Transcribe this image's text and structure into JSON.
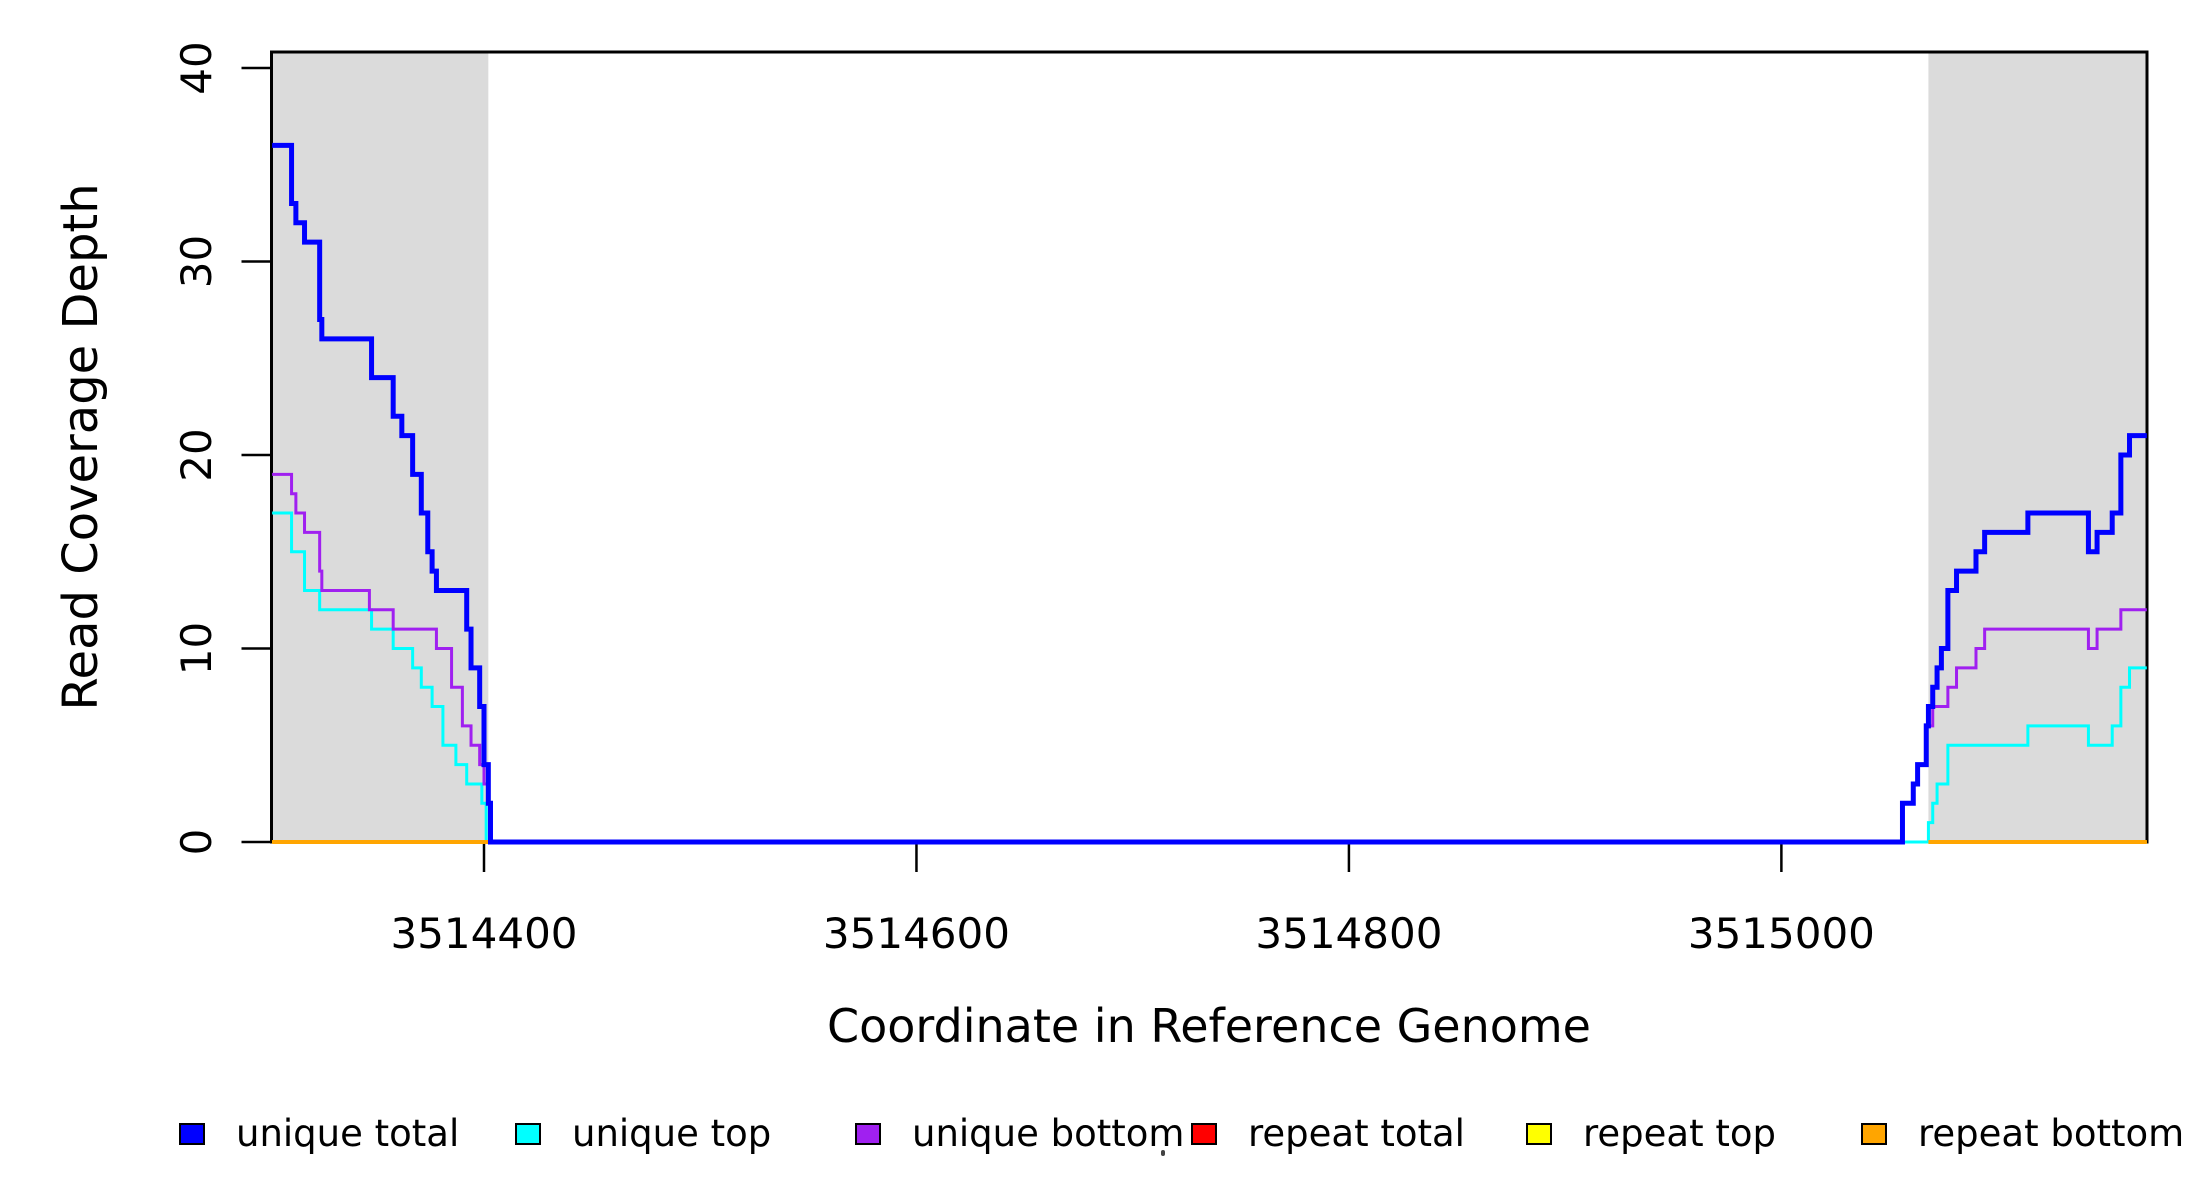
{
  "figure": {
    "background": "#FFFFFF",
    "axis_color": "#000000",
    "shade_color": "#DBDBDB"
  },
  "chart_data": {
    "type": "line",
    "subtype": "step",
    "title": "",
    "xlabel": "Coordinate in Reference Genome",
    "ylabel": "Read Coverage Depth",
    "x_range": [
      3514302,
      3515169
    ],
    "y_range": [
      0,
      40.8
    ],
    "x_ticks": [
      3514400,
      3514600,
      3514800,
      3515000
    ],
    "x_tick_labels": [
      "3514400",
      "3514600",
      "3514800",
      "3515000"
    ],
    "y_ticks": [
      0,
      10,
      20,
      30,
      40
    ],
    "y_tick_labels": [
      "0",
      "10",
      "20",
      "30",
      "40"
    ],
    "grid": false,
    "legend_position": "bottom",
    "shaded_regions": [
      {
        "name": "repeat-region-left",
        "x0": 3514302,
        "x1": 3514402
      },
      {
        "name": "repeat-region-right",
        "x0": 3515068,
        "x1": 3515169
      }
    ],
    "draw_order": [
      "repeat total",
      "repeat top",
      "unique top",
      "unique bottom",
      "repeat bottom",
      "unique total"
    ],
    "series": [
      {
        "name": "unique total",
        "color": "#0000FF",
        "line_width": 5,
        "segments": [
          [
            [
              3514302,
              36
            ],
            [
              3514311,
              33
            ],
            [
              3514313,
              32
            ],
            [
              3514317,
              31
            ],
            [
              3514324,
              27
            ],
            [
              3514325,
              26
            ],
            [
              3514348,
              24
            ],
            [
              3514358,
              22
            ],
            [
              3514362,
              21
            ],
            [
              3514367,
              19
            ],
            [
              3514371,
              17
            ],
            [
              3514374,
              15
            ],
            [
              3514376,
              14
            ],
            [
              3514378,
              13
            ],
            [
              3514392,
              11
            ],
            [
              3514394,
              9
            ],
            [
              3514398,
              7
            ],
            [
              3514400,
              4
            ],
            [
              3514402,
              2
            ],
            [
              3514403,
              0
            ],
            [
              3515056,
              2
            ],
            [
              3515061,
              3
            ],
            [
              3515063,
              4
            ],
            [
              3515067,
              6
            ],
            [
              3515068,
              7
            ],
            [
              3515070,
              8
            ],
            [
              3515072,
              9
            ],
            [
              3515074,
              10
            ],
            [
              3515077,
              13
            ],
            [
              3515081,
              14
            ],
            [
              3515090,
              15
            ],
            [
              3515094,
              16
            ],
            [
              3515114,
              17
            ],
            [
              3515142,
              15
            ],
            [
              3515146,
              16
            ],
            [
              3515153,
              17
            ],
            [
              3515157,
              20
            ],
            [
              3515161,
              21
            ],
            [
              3515169,
              21
            ]
          ]
        ]
      },
      {
        "name": "unique top",
        "color": "#00FFFF",
        "line_width": 3,
        "segments": [
          [
            [
              3514302,
              17
            ],
            [
              3514311,
              15
            ],
            [
              3514317,
              13
            ],
            [
              3514324,
              12
            ],
            [
              3514348,
              11
            ],
            [
              3514358,
              10
            ],
            [
              3514367,
              9
            ],
            [
              3514371,
              8
            ],
            [
              3514376,
              7
            ],
            [
              3514381,
              5
            ],
            [
              3514387,
              4
            ],
            [
              3514392,
              3
            ],
            [
              3514399,
              2
            ],
            [
              3514401,
              0
            ],
            [
              3515068,
              1
            ],
            [
              3515070,
              2
            ],
            [
              3515072,
              3
            ],
            [
              3515077,
              5
            ],
            [
              3515114,
              6
            ],
            [
              3515142,
              5
            ],
            [
              3515153,
              6
            ],
            [
              3515157,
              8
            ],
            [
              3515161,
              9
            ],
            [
              3515169,
              9
            ]
          ]
        ]
      },
      {
        "name": "unique bottom",
        "color": "#A020F0",
        "line_width": 3,
        "segments": [
          [
            [
              3514302,
              19
            ],
            [
              3514311,
              18
            ],
            [
              3514313,
              17
            ],
            [
              3514317,
              16
            ],
            [
              3514324,
              14
            ],
            [
              3514325,
              13
            ],
            [
              3514347,
              12
            ],
            [
              3514358,
              11
            ],
            [
              3514378,
              10
            ],
            [
              3514385,
              8
            ],
            [
              3514390,
              6
            ],
            [
              3514394,
              5
            ],
            [
              3514398,
              4
            ],
            [
              3514400,
              3
            ],
            [
              3514402,
              2
            ],
            [
              3514403,
              0
            ],
            [
              3515056,
              2
            ],
            [
              3515061,
              3
            ],
            [
              3515063,
              4
            ],
            [
              3515067,
              6
            ],
            [
              3515070,
              7
            ],
            [
              3515077,
              8
            ],
            [
              3515081,
              9
            ],
            [
              3515090,
              10
            ],
            [
              3515094,
              11
            ],
            [
              3515142,
              10
            ],
            [
              3515146,
              11
            ],
            [
              3515157,
              12
            ],
            [
              3515169,
              12
            ]
          ]
        ]
      },
      {
        "name": "repeat total",
        "color": "#FF0000",
        "line_width": 3,
        "segments": [
          [
            [
              3514302,
              0
            ],
            [
              3515169,
              0
            ]
          ]
        ]
      },
      {
        "name": "repeat top",
        "color": "#FFFF00",
        "line_width": 3,
        "segments": [
          [
            [
              3514302,
              0
            ],
            [
              3515169,
              0
            ]
          ]
        ]
      },
      {
        "name": "repeat bottom",
        "color": "#FFA500",
        "line_width": 4,
        "segments": [
          [
            [
              3514302,
              0
            ],
            [
              3514402,
              0
            ]
          ],
          [
            [
              3515068,
              0
            ],
            [
              3515169,
              0
            ]
          ]
        ]
      }
    ],
    "legend": {
      "items": [
        {
          "label": "unique total",
          "color": "#0000FF"
        },
        {
          "label": "unique top",
          "color": "#00FFFF"
        },
        {
          "label": "unique bottom",
          "color": "#A020F0"
        },
        {
          "label": "repeat total",
          "color": "#FF0000"
        },
        {
          "label": "repeat top",
          "color": "#FFFF00"
        },
        {
          "label": "repeat bottom",
          "color": "#FFA500"
        }
      ]
    }
  }
}
